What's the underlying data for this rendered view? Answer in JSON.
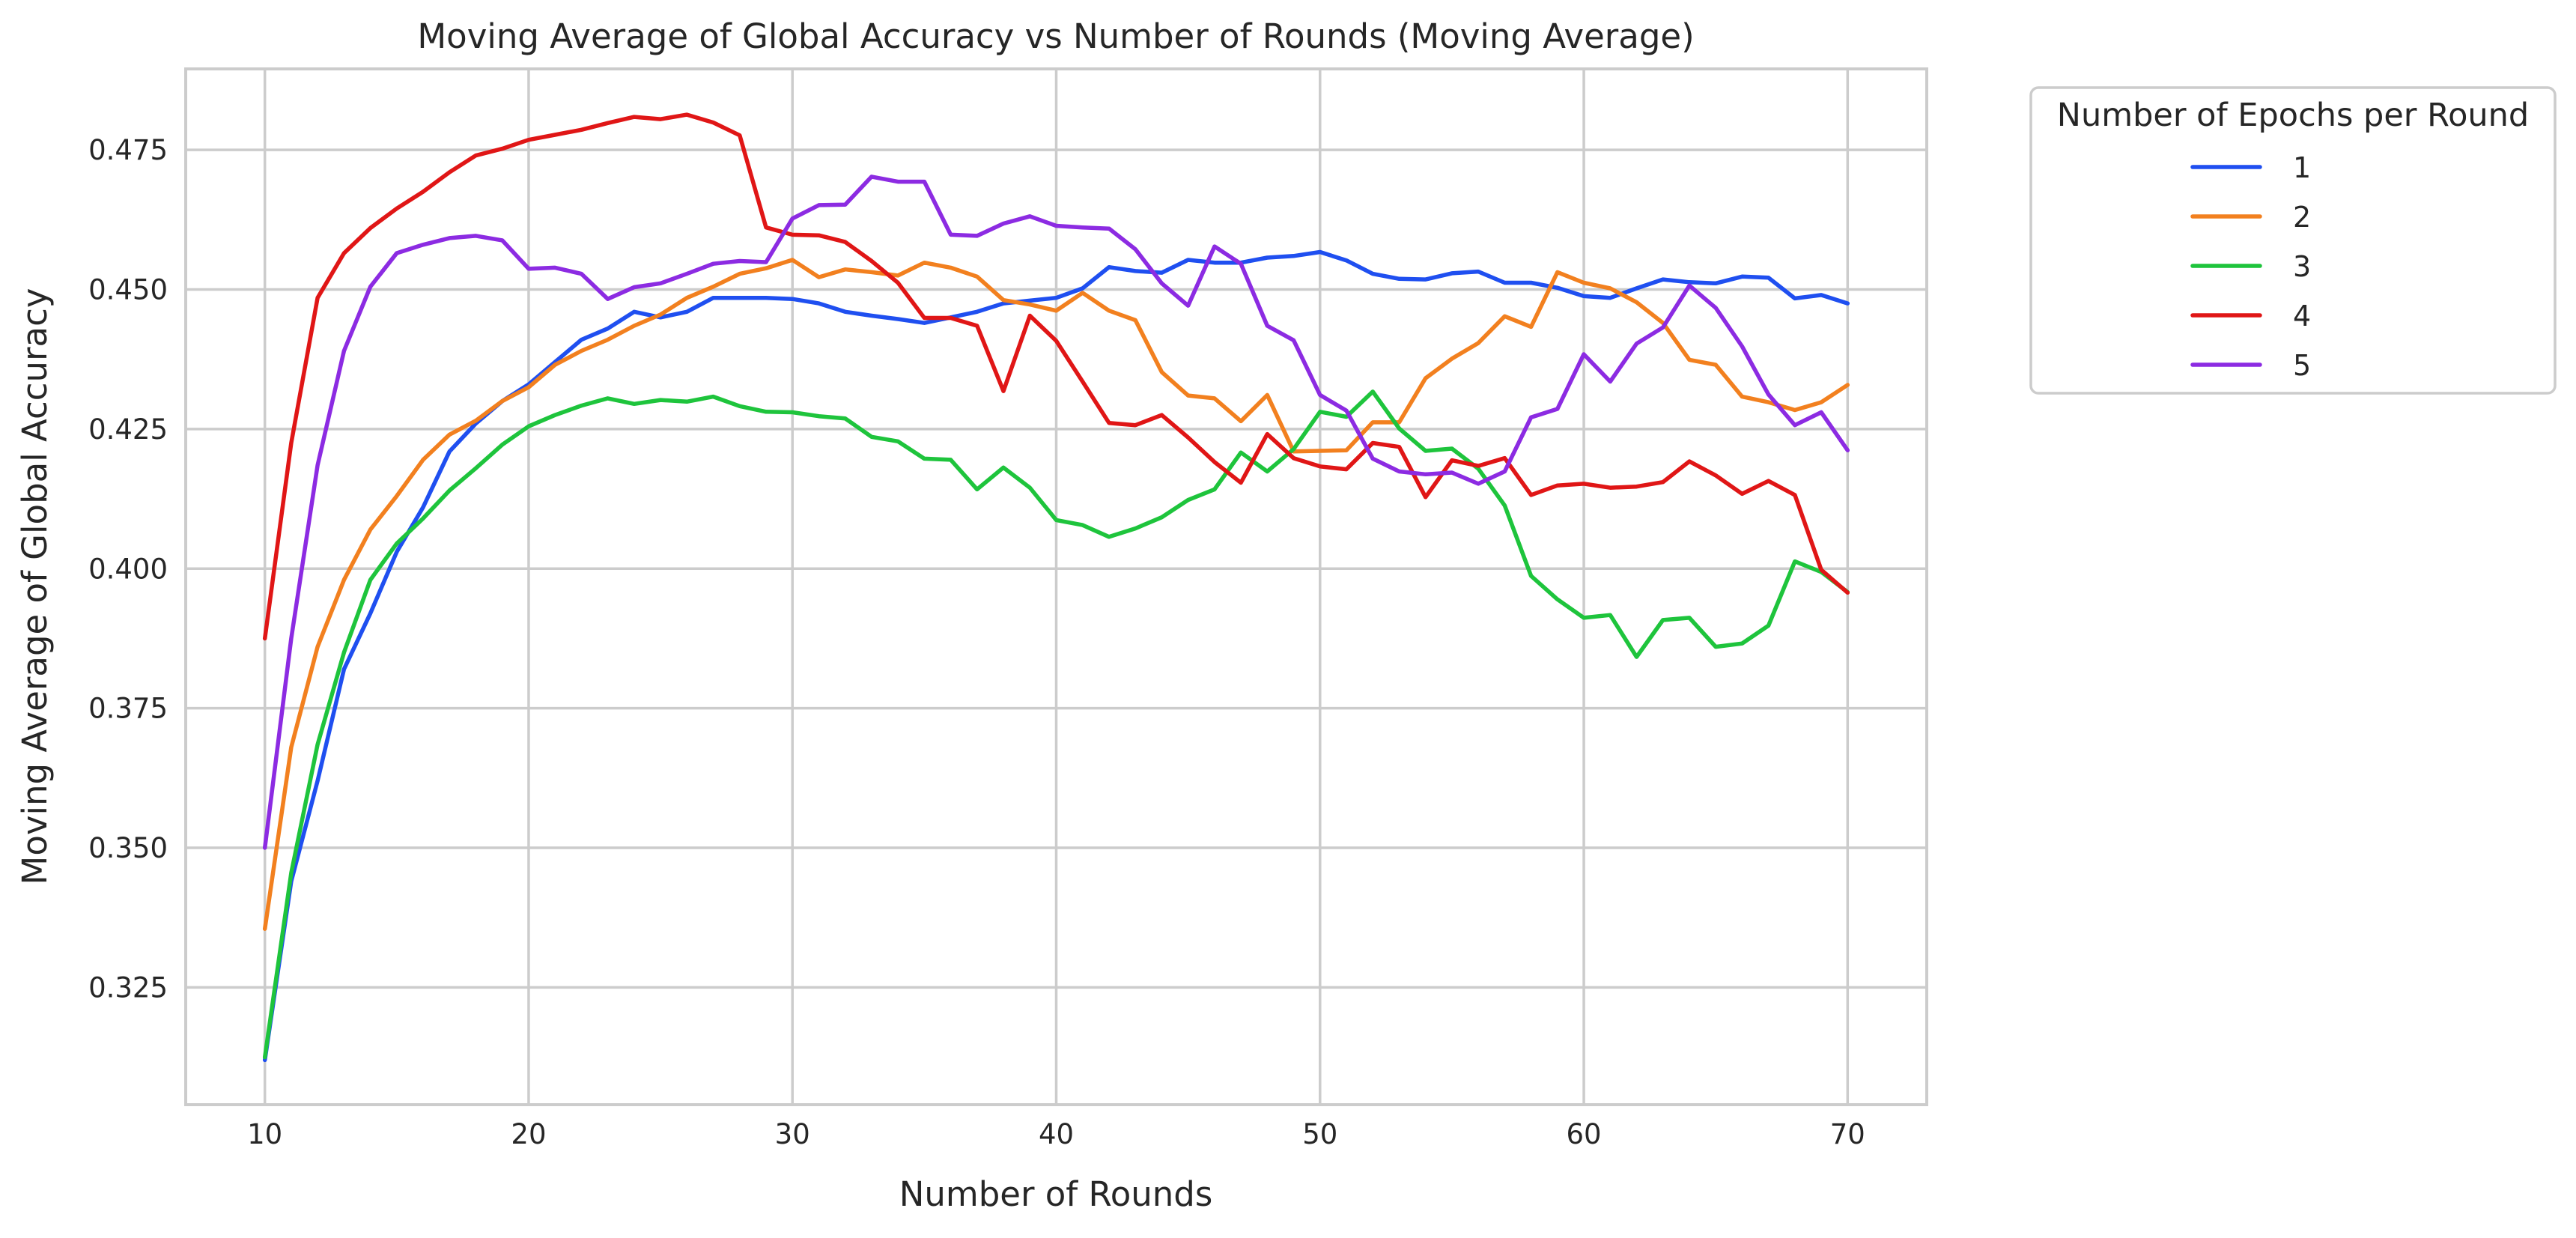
{
  "chart_data": {
    "type": "line",
    "title": "Moving Average of Global Accuracy vs Number of Rounds (Moving Average)",
    "xlabel": "Number of Rounds",
    "ylabel": "Moving Average of Global Accuracy",
    "xlim": [
      7,
      73
    ],
    "ylim": [
      0.304,
      0.4895
    ],
    "xticks": [
      10,
      20,
      30,
      40,
      50,
      60,
      70
    ],
    "yticks": [
      0.325,
      0.35,
      0.375,
      0.4,
      0.425,
      0.45,
      0.475
    ],
    "grid": true,
    "legend": {
      "title": "Number of Epochs per Round",
      "placement": "outside-top-right"
    },
    "x": [
      10,
      11,
      12,
      13,
      14,
      15,
      16,
      17,
      18,
      19,
      20,
      21,
      22,
      23,
      24,
      25,
      26,
      27,
      28,
      29,
      30,
      31,
      32,
      33,
      34,
      35,
      36,
      37,
      38,
      39,
      40,
      41,
      42,
      43,
      44,
      45,
      46,
      47,
      48,
      49,
      50,
      51,
      52,
      53,
      54,
      55,
      56,
      57,
      58,
      59,
      60,
      61,
      62,
      63,
      64,
      65,
      66,
      67,
      68,
      69,
      70
    ],
    "series": [
      {
        "name": "1",
        "color": "#1f4ff0",
        "values": [
          0.312,
          0.344,
          0.362,
          0.382,
          0.392,
          0.403,
          0.411,
          0.421,
          0.426,
          0.43,
          0.433,
          0.437,
          0.441,
          0.443,
          0.446,
          0.445,
          0.446,
          0.4485,
          0.4485,
          0.4485,
          0.4483,
          0.4475,
          0.446,
          0.4453,
          0.4447,
          0.444,
          0.445,
          0.446,
          0.4475,
          0.448,
          0.4485,
          0.4502,
          0.454,
          0.4533,
          0.453,
          0.4553,
          0.4548,
          0.4548,
          0.4557,
          0.456,
          0.4567,
          0.4552,
          0.4528,
          0.4519,
          0.4518,
          0.4529,
          0.4532,
          0.4512,
          0.4512,
          0.4503,
          0.4488,
          0.4485,
          0.4502,
          0.4518,
          0.4513,
          0.4511,
          0.4523,
          0.4521,
          0.4484,
          0.449,
          0.4475
        ]
      },
      {
        "name": "2",
        "color": "#f2801f",
        "values": [
          0.3355,
          0.368,
          0.386,
          0.398,
          0.407,
          0.413,
          0.4195,
          0.424,
          0.4265,
          0.43,
          0.4325,
          0.4365,
          0.439,
          0.441,
          0.4435,
          0.4455,
          0.4485,
          0.4505,
          0.4528,
          0.4538,
          0.4553,
          0.4522,
          0.4536,
          0.4531,
          0.4525,
          0.4548,
          0.4539,
          0.4523,
          0.4481,
          0.4473,
          0.4462,
          0.4494,
          0.4462,
          0.4445,
          0.4352,
          0.431,
          0.4305,
          0.4264,
          0.4311,
          0.421,
          0.4211,
          0.4212,
          0.4262,
          0.4262,
          0.4341,
          0.4376,
          0.4404,
          0.4452,
          0.4433,
          0.4531,
          0.4512,
          0.4502,
          0.4477,
          0.444,
          0.4374,
          0.4365,
          0.4308,
          0.4298,
          0.4284,
          0.4298,
          0.4329
        ]
      },
      {
        "name": "3",
        "color": "#1ec43c",
        "values": [
          0.3125,
          0.3455,
          0.3685,
          0.385,
          0.398,
          0.4045,
          0.409,
          0.414,
          0.418,
          0.4222,
          0.4255,
          0.4275,
          0.4292,
          0.4305,
          0.4295,
          0.4302,
          0.4299,
          0.4308,
          0.4291,
          0.4281,
          0.428,
          0.4273,
          0.4269,
          0.4236,
          0.4228,
          0.4197,
          0.4195,
          0.4142,
          0.4181,
          0.4145,
          0.4087,
          0.4078,
          0.4057,
          0.4072,
          0.4092,
          0.4123,
          0.4142,
          0.4208,
          0.4174,
          0.4214,
          0.4281,
          0.4272,
          0.4317,
          0.4251,
          0.4211,
          0.4215,
          0.4179,
          0.4113,
          0.3987,
          0.3945,
          0.3912,
          0.3917,
          0.3842,
          0.3908,
          0.3912,
          0.386,
          0.3866,
          0.3898,
          0.4013,
          0.3994,
          0.3958
        ]
      },
      {
        "name": "4",
        "color": "#e01616",
        "values": [
          0.3875,
          0.4225,
          0.4485,
          0.4565,
          0.461,
          0.4645,
          0.4675,
          0.471,
          0.474,
          0.4752,
          0.4768,
          0.4777,
          0.4786,
          0.4798,
          0.4809,
          0.4805,
          0.4813,
          0.4799,
          0.4776,
          0.4611,
          0.4598,
          0.4597,
          0.4585,
          0.4551,
          0.4512,
          0.4449,
          0.4449,
          0.4435,
          0.4318,
          0.4453,
          0.4408,
          0.4335,
          0.4261,
          0.4257,
          0.4275,
          0.4235,
          0.4191,
          0.4154,
          0.4241,
          0.4198,
          0.4183,
          0.4178,
          0.4225,
          0.4218,
          0.4128,
          0.4194,
          0.4184,
          0.4198,
          0.4132,
          0.4149,
          0.4152,
          0.4145,
          0.4147,
          0.4155,
          0.4192,
          0.4167,
          0.4134,
          0.4157,
          0.4132,
          0.3998,
          0.3957
        ]
      },
      {
        "name": "5",
        "color": "#8c2be2",
        "values": [
          0.35,
          0.3875,
          0.4185,
          0.439,
          0.4505,
          0.4565,
          0.458,
          0.4592,
          0.4596,
          0.4588,
          0.4537,
          0.4539,
          0.4528,
          0.4483,
          0.4504,
          0.4511,
          0.4528,
          0.4546,
          0.4551,
          0.4549,
          0.4627,
          0.4651,
          0.4652,
          0.4702,
          0.4693,
          0.4693,
          0.4598,
          0.4596,
          0.4618,
          0.4631,
          0.4614,
          0.4611,
          0.4609,
          0.4572,
          0.4511,
          0.4471,
          0.4577,
          0.4546,
          0.4435,
          0.4409,
          0.4311,
          0.4283,
          0.4197,
          0.4174,
          0.4169,
          0.4172,
          0.4152,
          0.4174,
          0.4271,
          0.4286,
          0.4384,
          0.4335,
          0.4403,
          0.4432,
          0.4507,
          0.4467,
          0.4398,
          0.4312,
          0.4257,
          0.428,
          0.4212
        ]
      }
    ]
  }
}
